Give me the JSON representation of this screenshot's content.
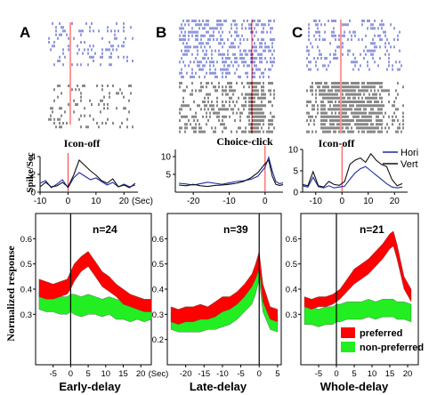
{
  "panels": [
    {
      "letter": "A",
      "event": "Icon-off",
      "n_label": "n=24",
      "xlabel": "Early-delay",
      "psth_xticks": [
        "-10",
        "0",
        "10",
        "20"
      ],
      "psth_xunit": "(Sec)",
      "psth_yticks": [
        "0",
        "2",
        "4"
      ],
      "pop_xticks": [
        "-5",
        "0",
        "5",
        "10",
        "15",
        "20"
      ],
      "pop_xunit": "(Sec)",
      "pop_yticks": [
        "0.3",
        "0.4",
        "0.5",
        "0.6"
      ]
    },
    {
      "letter": "B",
      "event": "Choice-click",
      "n_label": "n=39",
      "xlabel": "Late-delay",
      "psth_xticks": [
        "-20",
        "-10",
        "0"
      ],
      "psth_yticks": [
        "5",
        "10"
      ],
      "pop_xticks": [
        "-20",
        "-15",
        "-10",
        "-5",
        "0",
        "5"
      ],
      "pop_yticks": [
        "0.2",
        "0.3",
        "0.4",
        "0.5",
        "0.6"
      ]
    },
    {
      "letter": "C",
      "event": "Icon-off",
      "n_label": "n=21",
      "xlabel": "Whole-delay",
      "psth_xticks": [
        "-10",
        "0",
        "10",
        "20"
      ],
      "psth_yticks": [
        "0",
        "5",
        "10"
      ],
      "pop_xticks": [
        "-5",
        "0",
        "5",
        "10",
        "15",
        "20"
      ],
      "pop_yticks": [
        "0.3",
        "0.4",
        "0.5",
        "0.6"
      ]
    }
  ],
  "psth_ylabel": "Spike/Sec",
  "pop_ylabel": "Normalized response",
  "legend_psth": {
    "hori": "Hori",
    "vert": "Vert"
  },
  "legend_pop": {
    "preferred": "preferred",
    "non_preferred": "non-preferred"
  },
  "colors": {
    "preferred": "#ff0000",
    "non_preferred": "#22ee22",
    "hori": "#1c2ca8",
    "vert": "#111111",
    "raster_blue": "#2233bb",
    "raster_black": "#111111",
    "event_line": "#ff3333"
  },
  "chart_data": [
    {
      "type": "line",
      "panel": "A",
      "title": "Icon-off",
      "ylabel": "Spike/Sec",
      "xlim": [
        -10,
        25
      ],
      "ylim": [
        0,
        4
      ],
      "x": [
        -10,
        -8,
        -6,
        -4,
        -2,
        0,
        2,
        4,
        6,
        8,
        10,
        12,
        14,
        16,
        18,
        20,
        22,
        24
      ],
      "series": [
        {
          "name": "Hori",
          "values": [
            1.0,
            1.3,
            0.5,
            0.9,
            1.4,
            0.5,
            1.6,
            2.2,
            1.8,
            1.4,
            1.6,
            1.2,
            0.8,
            1.1,
            0.6,
            0.9,
            0.6,
            0.8
          ]
        },
        {
          "name": "Vert",
          "values": [
            0.6,
            1.1,
            0.6,
            0.7,
            1.1,
            0.6,
            1.9,
            3.6,
            3.0,
            2.4,
            1.9,
            1.3,
            1.0,
            1.5,
            0.6,
            0.8,
            0.5,
            1.0
          ]
        }
      ]
    },
    {
      "type": "line",
      "panel": "B",
      "title": "Choice-click",
      "ylabel": "Spike/Sec",
      "xlim": [
        -25,
        5
      ],
      "ylim": [
        0,
        12
      ],
      "x": [
        -24,
        -22,
        -20,
        -18,
        -16,
        -14,
        -12,
        -10,
        -8,
        -6,
        -4,
        -2,
        0,
        1,
        2,
        3,
        4,
        5
      ],
      "series": [
        {
          "name": "Hori",
          "values": [
            2.5,
            2.3,
            2.0,
            2.4,
            2.8,
            2.5,
            2.2,
            2.6,
            3.0,
            3.2,
            3.6,
            4.5,
            7.0,
            9.8,
            6.0,
            3.0,
            2.4,
            2.6
          ]
        },
        {
          "name": "Vert",
          "values": [
            2.0,
            1.8,
            2.2,
            1.8,
            1.6,
            1.9,
            2.0,
            2.2,
            2.5,
            3.0,
            4.0,
            5.5,
            8.0,
            9.0,
            4.5,
            2.2,
            1.9,
            2.1
          ]
        }
      ]
    },
    {
      "type": "line",
      "panel": "C",
      "title": "Icon-off",
      "ylabel": "Spike/Sec",
      "xlim": [
        -15,
        25
      ],
      "ylim": [
        0,
        10
      ],
      "x": [
        -15,
        -13,
        -11,
        -9,
        -7,
        -5,
        -3,
        -1,
        1,
        3,
        5,
        7,
        9,
        11,
        13,
        15,
        17,
        19,
        21,
        23
      ],
      "series": [
        {
          "name": "Hori",
          "values": [
            1.5,
            1.2,
            3.5,
            1.3,
            1.0,
            1.5,
            1.0,
            1.2,
            1.4,
            3.0,
            4.5,
            5.5,
            6.0,
            5.0,
            4.0,
            3.0,
            2.0,
            1.2,
            1.0,
            1.2
          ]
        },
        {
          "name": "Vert",
          "values": [
            1.8,
            1.5,
            4.8,
            1.5,
            1.2,
            2.5,
            1.8,
            1.6,
            2.5,
            6.5,
            7.5,
            8.0,
            7.0,
            9.0,
            7.5,
            6.5,
            6.0,
            3.0,
            1.5,
            2.0
          ]
        }
      ]
    },
    {
      "type": "area",
      "panel": "A",
      "ylabel": "Normalized response",
      "xlabel": "Early-delay",
      "xlim": [
        -10,
        23
      ],
      "ylim": [
        0.1,
        0.7
      ],
      "x": [
        -9,
        -7,
        -5,
        -3,
        -1,
        0,
        1,
        3,
        5,
        7,
        9,
        11,
        13,
        15,
        17,
        19,
        21,
        23
      ],
      "series": [
        {
          "name": "preferred",
          "upper": [
            0.44,
            0.43,
            0.42,
            0.43,
            0.44,
            0.47,
            0.5,
            0.53,
            0.55,
            0.51,
            0.47,
            0.45,
            0.42,
            0.4,
            0.38,
            0.37,
            0.36,
            0.36
          ],
          "lower": [
            0.37,
            0.36,
            0.36,
            0.37,
            0.38,
            0.4,
            0.43,
            0.47,
            0.49,
            0.45,
            0.41,
            0.39,
            0.37,
            0.34,
            0.33,
            0.32,
            0.31,
            0.31
          ]
        },
        {
          "name": "non-preferred",
          "upper": [
            0.39,
            0.38,
            0.38,
            0.37,
            0.37,
            0.38,
            0.38,
            0.37,
            0.38,
            0.37,
            0.36,
            0.37,
            0.36,
            0.35,
            0.35,
            0.36,
            0.35,
            0.35
          ],
          "lower": [
            0.32,
            0.31,
            0.31,
            0.3,
            0.3,
            0.31,
            0.3,
            0.29,
            0.3,
            0.3,
            0.29,
            0.3,
            0.28,
            0.28,
            0.27,
            0.28,
            0.27,
            0.28
          ]
        }
      ]
    },
    {
      "type": "area",
      "panel": "B",
      "ylabel": "Normalized response",
      "xlabel": "Late-delay",
      "xlim": [
        -25,
        6
      ],
      "ylim": [
        0.1,
        0.7
      ],
      "x": [
        -24,
        -22,
        -20,
        -18,
        -16,
        -14,
        -12,
        -10,
        -8,
        -6,
        -4,
        -2,
        -1,
        0,
        1,
        3,
        5
      ],
      "series": [
        {
          "name": "preferred",
          "upper": [
            0.33,
            0.32,
            0.33,
            0.33,
            0.34,
            0.33,
            0.35,
            0.37,
            0.37,
            0.39,
            0.42,
            0.46,
            0.5,
            0.55,
            0.42,
            0.33,
            0.32
          ],
          "lower": [
            0.27,
            0.26,
            0.27,
            0.27,
            0.28,
            0.28,
            0.29,
            0.31,
            0.32,
            0.34,
            0.37,
            0.41,
            0.44,
            0.48,
            0.35,
            0.28,
            0.27
          ]
        },
        {
          "name": "non-preferred",
          "upper": [
            0.31,
            0.3,
            0.3,
            0.3,
            0.3,
            0.31,
            0.31,
            0.32,
            0.33,
            0.35,
            0.38,
            0.41,
            0.45,
            0.51,
            0.38,
            0.31,
            0.3
          ],
          "lower": [
            0.24,
            0.23,
            0.23,
            0.23,
            0.23,
            0.24,
            0.24,
            0.25,
            0.26,
            0.28,
            0.31,
            0.34,
            0.38,
            0.44,
            0.31,
            0.24,
            0.23
          ]
        }
      ]
    },
    {
      "type": "area",
      "panel": "C",
      "ylabel": "Normalized response",
      "xlabel": "Whole-delay",
      "xlim": [
        -10,
        23
      ],
      "ylim": [
        0.1,
        0.7
      ],
      "x": [
        -9,
        -7,
        -5,
        -3,
        -1,
        0,
        1,
        3,
        5,
        7,
        9,
        11,
        13,
        15,
        16,
        17,
        19,
        21
      ],
      "series": [
        {
          "name": "preferred",
          "upper": [
            0.37,
            0.36,
            0.37,
            0.37,
            0.38,
            0.39,
            0.4,
            0.44,
            0.48,
            0.5,
            0.52,
            0.55,
            0.58,
            0.62,
            0.63,
            0.58,
            0.45,
            0.4
          ],
          "lower": [
            0.33,
            0.32,
            0.33,
            0.33,
            0.34,
            0.35,
            0.36,
            0.39,
            0.42,
            0.44,
            0.46,
            0.49,
            0.52,
            0.56,
            0.57,
            0.52,
            0.4,
            0.35
          ]
        },
        {
          "name": "non-preferred",
          "upper": [
            0.33,
            0.33,
            0.32,
            0.33,
            0.33,
            0.34,
            0.34,
            0.35,
            0.35,
            0.35,
            0.36,
            0.35,
            0.36,
            0.36,
            0.36,
            0.35,
            0.35,
            0.34
          ],
          "lower": [
            0.26,
            0.26,
            0.25,
            0.26,
            0.26,
            0.27,
            0.27,
            0.28,
            0.28,
            0.28,
            0.29,
            0.28,
            0.29,
            0.29,
            0.29,
            0.28,
            0.28,
            0.27
          ]
        }
      ]
    }
  ]
}
